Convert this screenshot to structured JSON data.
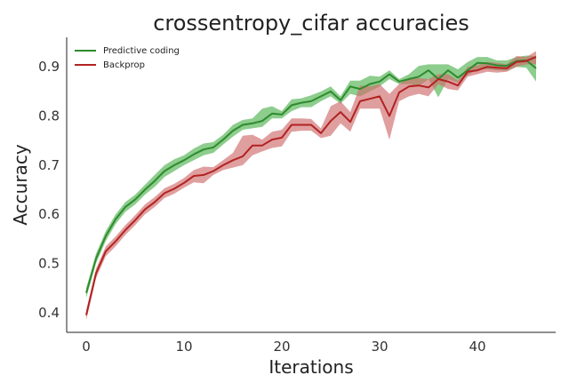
{
  "chart_data": {
    "type": "line",
    "title": "crossentropy_cifar accuracies",
    "xlabel": "Iterations",
    "ylabel": "Accuracy",
    "xlim": [
      -2,
      48
    ],
    "ylim": [
      0.36,
      0.96
    ],
    "xticks": [
      0,
      10,
      20,
      30,
      40
    ],
    "yticks": [
      0.4,
      0.5,
      0.6,
      0.7,
      0.8,
      0.9
    ],
    "ytick_labels": [
      "0.4",
      "0.5",
      "0.6",
      "0.7",
      "0.8",
      "0.9"
    ],
    "grid": false,
    "legend_position": "top-left",
    "x": [
      0,
      1,
      2,
      3,
      4,
      5,
      6,
      7,
      8,
      9,
      10,
      11,
      12,
      13,
      14,
      15,
      16,
      17,
      18,
      19,
      20,
      21,
      22,
      23,
      24,
      25,
      26,
      27,
      28,
      29,
      30,
      31,
      32,
      33,
      34,
      35,
      36,
      37,
      38,
      39,
      40,
      41,
      42,
      43,
      44,
      45,
      46
    ],
    "series": [
      {
        "name": "Predictive coding",
        "color": "#2e8b2e",
        "band_color": "#5cb85c",
        "values": [
          0.44,
          0.51,
          0.556,
          0.59,
          0.615,
          0.63,
          0.65,
          0.668,
          0.688,
          0.7,
          0.71,
          0.722,
          0.732,
          0.736,
          0.752,
          0.77,
          0.782,
          0.785,
          0.79,
          0.805,
          0.803,
          0.822,
          0.827,
          0.83,
          0.84,
          0.85,
          0.832,
          0.86,
          0.855,
          0.865,
          0.87,
          0.885,
          0.87,
          0.875,
          0.88,
          0.893,
          0.875,
          0.893,
          0.878,
          0.893,
          0.908,
          0.907,
          0.903,
          0.902,
          0.912,
          0.913,
          0.897
        ],
        "lower": [
          0.43,
          0.5,
          0.546,
          0.58,
          0.605,
          0.62,
          0.64,
          0.656,
          0.676,
          0.688,
          0.7,
          0.71,
          0.72,
          0.725,
          0.742,
          0.758,
          0.772,
          0.775,
          0.778,
          0.795,
          0.795,
          0.81,
          0.818,
          0.818,
          0.83,
          0.84,
          0.825,
          0.845,
          0.84,
          0.85,
          0.86,
          0.875,
          0.865,
          0.865,
          0.86,
          0.875,
          0.838,
          0.875,
          0.868,
          0.883,
          0.895,
          0.895,
          0.893,
          0.892,
          0.9,
          0.898,
          0.87
        ],
        "upper": [
          0.45,
          0.52,
          0.566,
          0.6,
          0.625,
          0.64,
          0.66,
          0.68,
          0.7,
          0.712,
          0.72,
          0.734,
          0.744,
          0.747,
          0.762,
          0.782,
          0.792,
          0.795,
          0.815,
          0.82,
          0.81,
          0.834,
          0.836,
          0.842,
          0.85,
          0.86,
          0.84,
          0.872,
          0.872,
          0.882,
          0.88,
          0.893,
          0.875,
          0.885,
          0.902,
          0.905,
          0.905,
          0.905,
          0.895,
          0.91,
          0.92,
          0.92,
          0.913,
          0.913,
          0.92,
          0.923,
          0.922
        ]
      },
      {
        "name": "Backprop",
        "color": "#b22222",
        "band_color": "#d06b6b",
        "values": [
          0.395,
          0.48,
          0.525,
          0.545,
          0.568,
          0.588,
          0.61,
          0.625,
          0.643,
          0.652,
          0.664,
          0.678,
          0.68,
          0.688,
          0.7,
          0.71,
          0.718,
          0.74,
          0.74,
          0.752,
          0.756,
          0.782,
          0.782,
          0.782,
          0.765,
          0.79,
          0.808,
          0.788,
          0.83,
          0.835,
          0.84,
          0.8,
          0.848,
          0.86,
          0.862,
          0.858,
          0.875,
          0.87,
          0.862,
          0.89,
          0.893,
          0.9,
          0.898,
          0.897,
          0.91,
          0.912,
          0.92
        ],
        "lower": [
          0.385,
          0.47,
          0.515,
          0.535,
          0.558,
          0.578,
          0.6,
          0.615,
          0.633,
          0.642,
          0.654,
          0.665,
          0.663,
          0.68,
          0.69,
          0.695,
          0.7,
          0.72,
          0.728,
          0.735,
          0.738,
          0.768,
          0.77,
          0.77,
          0.755,
          0.76,
          0.785,
          0.768,
          0.815,
          0.815,
          0.815,
          0.752,
          0.83,
          0.84,
          0.845,
          0.84,
          0.865,
          0.855,
          0.852,
          0.88,
          0.885,
          0.89,
          0.888,
          0.89,
          0.9,
          0.905,
          0.905
        ],
        "upper": [
          0.405,
          0.49,
          0.535,
          0.555,
          0.578,
          0.598,
          0.62,
          0.635,
          0.653,
          0.662,
          0.674,
          0.69,
          0.697,
          0.696,
          0.71,
          0.725,
          0.76,
          0.762,
          0.752,
          0.768,
          0.772,
          0.795,
          0.795,
          0.794,
          0.775,
          0.82,
          0.83,
          0.808,
          0.862,
          0.86,
          0.865,
          0.845,
          0.865,
          0.878,
          0.877,
          0.875,
          0.885,
          0.885,
          0.872,
          0.9,
          0.903,
          0.91,
          0.908,
          0.905,
          0.922,
          0.92,
          0.932
        ]
      }
    ]
  }
}
